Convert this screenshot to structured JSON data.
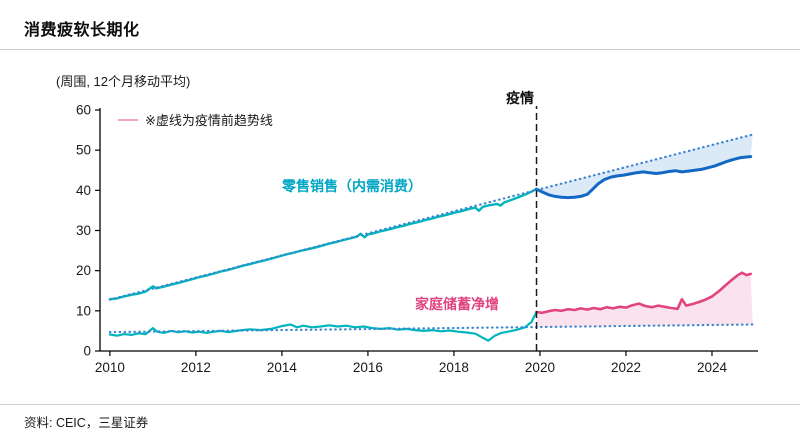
{
  "page": {
    "title": "消费疲软长期化",
    "footer": "资料: CEIC，三星证券"
  },
  "chart": {
    "unit_label": "(周围, 12个月移动平均)",
    "legend_note": "※虚线为疫情前趋势线",
    "pandemic_label": "疫情",
    "retail_label": "零售销售（内需消费）",
    "savings_label": "家庭储蓄净增"
  },
  "colors": {
    "teal": "#00b5bd",
    "blue": "#1268c4",
    "pink": "#e0457f",
    "trend_dotted": "#3b86cf",
    "legend_dash": "#f2a8c0",
    "pandemic_line": "#1a1a1a",
    "blue_fill": "rgba(59,134,207,0.18)",
    "pink_fill": "rgba(224,69,127,0.15)"
  },
  "chart_data": {
    "type": "line",
    "title": "消费疲软长期化",
    "ylabel": "(周围, 12个月移动平均)",
    "xlim": [
      2009.77,
      2025.07
    ],
    "ylim": [
      0,
      60
    ],
    "y_ticks": [
      0,
      10,
      20,
      30,
      40,
      50,
      60
    ],
    "x_ticks": [
      2010,
      2012,
      2014,
      2016,
      2018,
      2020,
      2022,
      2024
    ],
    "pandemic_line_x": 2019.92,
    "legend_position": "top-left",
    "grid": false,
    "series": [
      {
        "id": "retail-pre",
        "name": "零售销售（内需消费）疫情前",
        "color": "#00b5bd",
        "style": "solid",
        "width": 2.4,
        "points": [
          [
            2010.0,
            12.9
          ],
          [
            2010.17,
            13.1
          ],
          [
            2010.33,
            13.6
          ],
          [
            2010.5,
            14.0
          ],
          [
            2010.67,
            14.3
          ],
          [
            2010.83,
            14.8
          ],
          [
            2011.0,
            16.1
          ],
          [
            2011.08,
            15.6
          ],
          [
            2011.25,
            16.0
          ],
          [
            2011.42,
            16.5
          ],
          [
            2011.58,
            16.9
          ],
          [
            2011.75,
            17.4
          ],
          [
            2011.92,
            17.9
          ],
          [
            2012.08,
            18.4
          ],
          [
            2012.25,
            18.8
          ],
          [
            2012.42,
            19.3
          ],
          [
            2012.58,
            19.8
          ],
          [
            2012.75,
            20.2
          ],
          [
            2012.92,
            20.7
          ],
          [
            2013.08,
            21.2
          ],
          [
            2013.25,
            21.6
          ],
          [
            2013.42,
            22.1
          ],
          [
            2013.58,
            22.5
          ],
          [
            2013.75,
            23.0
          ],
          [
            2013.92,
            23.5
          ],
          [
            2014.08,
            24.0
          ],
          [
            2014.25,
            24.4
          ],
          [
            2014.42,
            24.9
          ],
          [
            2014.58,
            25.3
          ],
          [
            2014.75,
            25.7
          ],
          [
            2014.92,
            26.2
          ],
          [
            2015.08,
            26.7
          ],
          [
            2015.25,
            27.1
          ],
          [
            2015.42,
            27.6
          ],
          [
            2015.58,
            28.0
          ],
          [
            2015.75,
            28.5
          ],
          [
            2015.83,
            29.2
          ],
          [
            2015.92,
            28.3
          ],
          [
            2016.0,
            29.0
          ],
          [
            2016.17,
            29.4
          ],
          [
            2016.33,
            29.9
          ],
          [
            2016.5,
            30.3
          ],
          [
            2016.67,
            30.8
          ],
          [
            2016.83,
            31.2
          ],
          [
            2017.0,
            31.7
          ],
          [
            2017.17,
            32.1
          ],
          [
            2017.33,
            32.6
          ],
          [
            2017.5,
            33.0
          ],
          [
            2017.67,
            33.5
          ],
          [
            2017.83,
            33.9
          ],
          [
            2018.0,
            34.4
          ],
          [
            2018.17,
            34.8
          ],
          [
            2018.33,
            35.3
          ],
          [
            2018.5,
            35.7
          ],
          [
            2018.58,
            34.9
          ],
          [
            2018.67,
            35.9
          ],
          [
            2018.83,
            36.3
          ],
          [
            2019.0,
            36.6
          ],
          [
            2019.08,
            36.2
          ],
          [
            2019.17,
            37.0
          ],
          [
            2019.33,
            37.6
          ],
          [
            2019.5,
            38.3
          ],
          [
            2019.67,
            39.0
          ],
          [
            2019.83,
            39.8
          ],
          [
            2019.92,
            40.3
          ]
        ]
      },
      {
        "id": "retail-post",
        "name": "零售销售（内需消费）疫情后",
        "color": "#1268c4",
        "style": "solid",
        "width": 3,
        "points": [
          [
            2019.92,
            40.3
          ],
          [
            2020.05,
            39.6
          ],
          [
            2020.2,
            38.9
          ],
          [
            2020.35,
            38.5
          ],
          [
            2020.5,
            38.3
          ],
          [
            2020.65,
            38.2
          ],
          [
            2020.8,
            38.3
          ],
          [
            2020.95,
            38.5
          ],
          [
            2021.1,
            39.0
          ],
          [
            2021.2,
            40.0
          ],
          [
            2021.35,
            41.6
          ],
          [
            2021.5,
            42.7
          ],
          [
            2021.65,
            43.3
          ],
          [
            2021.8,
            43.6
          ],
          [
            2021.95,
            43.8
          ],
          [
            2022.1,
            44.1
          ],
          [
            2022.25,
            44.4
          ],
          [
            2022.4,
            44.6
          ],
          [
            2022.55,
            44.4
          ],
          [
            2022.7,
            44.2
          ],
          [
            2022.85,
            44.4
          ],
          [
            2023.0,
            44.7
          ],
          [
            2023.15,
            44.9
          ],
          [
            2023.3,
            44.6
          ],
          [
            2023.45,
            44.8
          ],
          [
            2023.6,
            45.0
          ],
          [
            2023.75,
            45.2
          ],
          [
            2023.9,
            45.6
          ],
          [
            2024.05,
            46.0
          ],
          [
            2024.2,
            46.6
          ],
          [
            2024.35,
            47.2
          ],
          [
            2024.5,
            47.7
          ],
          [
            2024.65,
            48.1
          ],
          [
            2024.8,
            48.3
          ],
          [
            2024.9,
            48.4
          ]
        ]
      },
      {
        "id": "retail-trend",
        "name": "零售销售疫情前趋势线",
        "color": "#3b86cf",
        "style": "dotted",
        "width": 2.2,
        "points": [
          [
            2010.0,
            12.8
          ],
          [
            2024.95,
            53.9
          ]
        ]
      },
      {
        "id": "savings-pre",
        "name": "家庭储蓄净增疫情前",
        "color": "#00b5bd",
        "style": "solid",
        "width": 2.2,
        "points": [
          [
            2010.0,
            4.1
          ],
          [
            2010.17,
            3.8
          ],
          [
            2010.33,
            4.2
          ],
          [
            2010.5,
            4.0
          ],
          [
            2010.67,
            4.4
          ],
          [
            2010.83,
            4.2
          ],
          [
            2011.0,
            5.7
          ],
          [
            2011.1,
            4.8
          ],
          [
            2011.25,
            4.5
          ],
          [
            2011.42,
            5.0
          ],
          [
            2011.58,
            4.7
          ],
          [
            2011.75,
            4.9
          ],
          [
            2011.92,
            4.6
          ],
          [
            2012.08,
            4.8
          ],
          [
            2012.25,
            4.5
          ],
          [
            2012.42,
            4.8
          ],
          [
            2012.58,
            5.0
          ],
          [
            2012.75,
            4.7
          ],
          [
            2013.0,
            5.1
          ],
          [
            2013.25,
            5.4
          ],
          [
            2013.5,
            5.2
          ],
          [
            2013.75,
            5.5
          ],
          [
            2014.0,
            6.2
          ],
          [
            2014.2,
            6.6
          ],
          [
            2014.35,
            5.9
          ],
          [
            2014.5,
            6.3
          ],
          [
            2014.7,
            5.9
          ],
          [
            2014.9,
            6.1
          ],
          [
            2015.1,
            6.4
          ],
          [
            2015.3,
            6.1
          ],
          [
            2015.5,
            6.3
          ],
          [
            2015.7,
            5.9
          ],
          [
            2015.9,
            6.1
          ],
          [
            2016.1,
            5.7
          ],
          [
            2016.3,
            5.5
          ],
          [
            2016.5,
            5.7
          ],
          [
            2016.7,
            5.3
          ],
          [
            2016.9,
            5.5
          ],
          [
            2017.1,
            5.2
          ],
          [
            2017.3,
            5.0
          ],
          [
            2017.5,
            5.2
          ],
          [
            2017.7,
            4.9
          ],
          [
            2017.9,
            5.1
          ],
          [
            2018.1,
            4.8
          ],
          [
            2018.3,
            4.6
          ],
          [
            2018.5,
            4.3
          ],
          [
            2018.65,
            3.4
          ],
          [
            2018.8,
            2.6
          ],
          [
            2018.95,
            3.8
          ],
          [
            2019.1,
            4.5
          ],
          [
            2019.3,
            4.9
          ],
          [
            2019.5,
            5.4
          ],
          [
            2019.65,
            5.9
          ],
          [
            2019.8,
            7.2
          ],
          [
            2019.92,
            9.7
          ]
        ]
      },
      {
        "id": "savings-post",
        "name": "家庭储蓄净增疫情后",
        "color": "#e0457f",
        "style": "solid",
        "width": 2.6,
        "points": [
          [
            2019.92,
            9.7
          ],
          [
            2020.05,
            9.5
          ],
          [
            2020.2,
            9.9
          ],
          [
            2020.35,
            10.2
          ],
          [
            2020.5,
            10.0
          ],
          [
            2020.65,
            10.4
          ],
          [
            2020.8,
            10.2
          ],
          [
            2020.95,
            10.6
          ],
          [
            2021.1,
            10.3
          ],
          [
            2021.25,
            10.7
          ],
          [
            2021.4,
            10.4
          ],
          [
            2021.55,
            10.9
          ],
          [
            2021.7,
            10.6
          ],
          [
            2021.85,
            11.0
          ],
          [
            2022.0,
            10.8
          ],
          [
            2022.15,
            11.4
          ],
          [
            2022.3,
            11.8
          ],
          [
            2022.45,
            11.2
          ],
          [
            2022.6,
            10.9
          ],
          [
            2022.75,
            11.3
          ],
          [
            2022.9,
            11.0
          ],
          [
            2023.05,
            10.7
          ],
          [
            2023.2,
            10.5
          ],
          [
            2023.3,
            12.9
          ],
          [
            2023.4,
            11.3
          ],
          [
            2023.55,
            11.7
          ],
          [
            2023.7,
            12.2
          ],
          [
            2023.85,
            12.8
          ],
          [
            2024.0,
            13.6
          ],
          [
            2024.15,
            14.8
          ],
          [
            2024.3,
            16.2
          ],
          [
            2024.45,
            17.6
          ],
          [
            2024.6,
            18.9
          ],
          [
            2024.7,
            19.5
          ],
          [
            2024.8,
            18.9
          ],
          [
            2024.9,
            19.2
          ]
        ]
      },
      {
        "id": "savings-trend",
        "name": "家庭储蓄疫情前趋势线",
        "color": "#3b86cf",
        "style": "dotted",
        "width": 2.2,
        "points": [
          [
            2010.0,
            4.7
          ],
          [
            2024.95,
            6.6
          ]
        ]
      }
    ],
    "shaded_areas": [
      {
        "name": "retail-gap-area",
        "upper": 2,
        "lower": 1,
        "from_x": 2019.92,
        "color": "rgba(59,134,207,0.18)"
      },
      {
        "name": "savings-gap-area",
        "upper": 4,
        "lower": 5,
        "from_x": 2019.92,
        "color": "rgba(224,69,127,0.15)"
      }
    ]
  }
}
